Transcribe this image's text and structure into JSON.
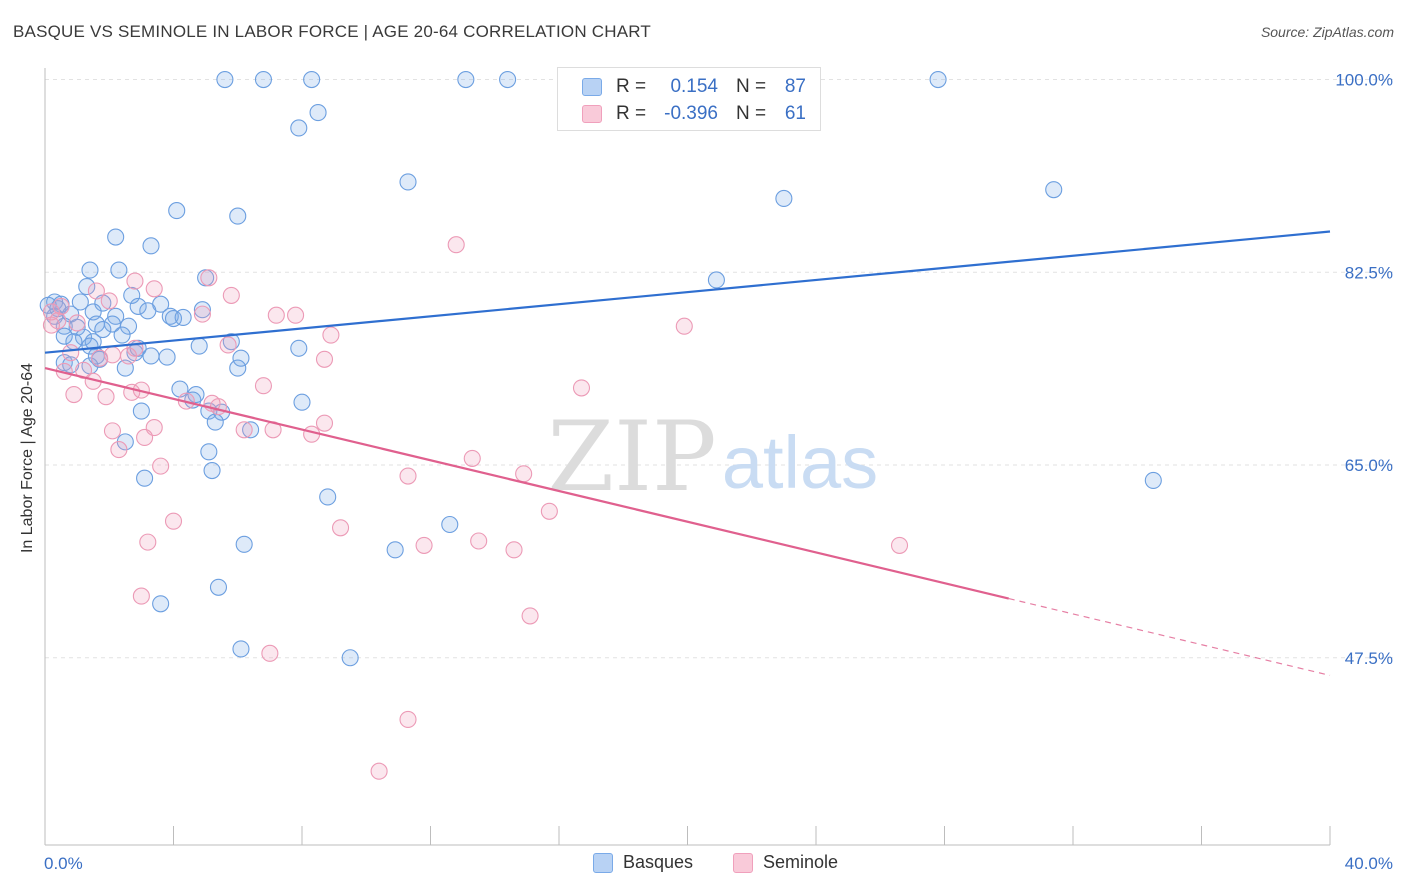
{
  "title": "BASQUE VS SEMINOLE IN LABOR FORCE | AGE 20-64 CORRELATION CHART",
  "source": "Source: ZipAtlas.com",
  "watermark": {
    "zip": "ZIP",
    "atlas": "atlas"
  },
  "legend": {
    "r_label": "R =",
    "n_label": "N =",
    "rows": [
      {
        "name": "Basques",
        "r": "0.154",
        "n": "87"
      },
      {
        "name": "Seminole",
        "r": "-0.396",
        "n": "61"
      }
    ]
  },
  "chart_data": {
    "type": "scatter",
    "ylabel": "In Labor Force | Age 20-64",
    "xlim": [
      0,
      40
    ],
    "ylim": [
      30.5,
      101.5
    ],
    "x_tick_labels": [
      "0.0%",
      "40.0%"
    ],
    "y_ticks": [
      47.5,
      65.0,
      82.5,
      100.0
    ],
    "y_tick_labels": [
      "47.5%",
      "65.0%",
      "82.5%",
      "100.0%"
    ],
    "grid": "horizontal dashed",
    "colors": {
      "Basques": "#7aaae8",
      "Seminole": "#f0a0bc",
      "Basques_line": "#2f6fd0",
      "Seminole_line": "#e0608e",
      "tick_text": "#3a6fc4"
    },
    "series": [
      {
        "name": "Basques",
        "trend": {
          "x": [
            0,
            40
          ],
          "y": [
            75.2,
            86.2
          ],
          "solid_until": 40
        },
        "points": [
          [
            5.6,
            100.0
          ],
          [
            6.8,
            100.0
          ],
          [
            8.3,
            100.0
          ],
          [
            13.1,
            100.0
          ],
          [
            14.4,
            100.0
          ],
          [
            27.8,
            100.0
          ],
          [
            8.5,
            97.0
          ],
          [
            7.9,
            95.6
          ],
          [
            11.3,
            90.7
          ],
          [
            31.4,
            90.0
          ],
          [
            23.0,
            89.2
          ],
          [
            4.1,
            88.1
          ],
          [
            6.0,
            87.6
          ],
          [
            2.2,
            85.7
          ],
          [
            3.3,
            84.9
          ],
          [
            1.4,
            82.7
          ],
          [
            2.3,
            82.7
          ],
          [
            5.0,
            82.0
          ],
          [
            20.9,
            81.8
          ],
          [
            1.3,
            81.2
          ],
          [
            2.7,
            80.4
          ],
          [
            0.3,
            79.8
          ],
          [
            0.5,
            79.6
          ],
          [
            1.1,
            79.8
          ],
          [
            1.8,
            79.7
          ],
          [
            3.6,
            79.6
          ],
          [
            2.9,
            79.4
          ],
          [
            0.4,
            79.2
          ],
          [
            3.2,
            79.0
          ],
          [
            1.5,
            78.9
          ],
          [
            4.9,
            79.1
          ],
          [
            0.3,
            78.5
          ],
          [
            0.8,
            78.7
          ],
          [
            2.2,
            78.5
          ],
          [
            3.9,
            78.5
          ],
          [
            4.0,
            78.3
          ],
          [
            0.6,
            77.6
          ],
          [
            1.6,
            77.8
          ],
          [
            2.1,
            77.8
          ],
          [
            2.6,
            77.6
          ],
          [
            1.8,
            77.3
          ],
          [
            1.0,
            77.5
          ],
          [
            0.6,
            76.7
          ],
          [
            1.2,
            76.6
          ],
          [
            1.5,
            76.2
          ],
          [
            1.4,
            75.8
          ],
          [
            5.8,
            76.2
          ],
          [
            4.8,
            75.8
          ],
          [
            7.9,
            75.6
          ],
          [
            2.8,
            75.2
          ],
          [
            2.9,
            75.6
          ],
          [
            3.3,
            74.9
          ],
          [
            1.6,
            74.9
          ],
          [
            1.7,
            74.6
          ],
          [
            0.6,
            74.3
          ],
          [
            0.8,
            74.1
          ],
          [
            1.4,
            74.0
          ],
          [
            2.5,
            73.8
          ],
          [
            6.0,
            73.8
          ],
          [
            4.2,
            71.9
          ],
          [
            4.7,
            71.4
          ],
          [
            4.6,
            70.9
          ],
          [
            8.0,
            70.7
          ],
          [
            3.0,
            69.9
          ],
          [
            5.1,
            69.9
          ],
          [
            5.5,
            69.8
          ],
          [
            5.3,
            68.9
          ],
          [
            6.4,
            68.2
          ],
          [
            2.5,
            67.1
          ],
          [
            5.1,
            66.2
          ],
          [
            3.1,
            63.8
          ],
          [
            5.2,
            64.5
          ],
          [
            8.8,
            62.1
          ],
          [
            12.6,
            59.6
          ],
          [
            34.5,
            63.6
          ],
          [
            6.2,
            57.8
          ],
          [
            10.9,
            57.3
          ],
          [
            5.4,
            53.9
          ],
          [
            3.6,
            52.4
          ],
          [
            6.1,
            48.3
          ],
          [
            9.5,
            47.5
          ],
          [
            0.1,
            79.5
          ],
          [
            0.9,
            76.2
          ],
          [
            2.4,
            76.8
          ],
          [
            3.8,
            74.8
          ],
          [
            4.3,
            78.4
          ],
          [
            6.1,
            74.7
          ]
        ]
      },
      {
        "name": "Seminole",
        "trend": {
          "x": [
            0,
            40
          ],
          "y": [
            73.8,
            45.9
          ],
          "solid_until": 30.0
        },
        "points": [
          [
            12.8,
            85.0
          ],
          [
            2.8,
            81.7
          ],
          [
            5.1,
            82.0
          ],
          [
            3.4,
            81.0
          ],
          [
            5.8,
            80.4
          ],
          [
            1.6,
            80.8
          ],
          [
            2.0,
            79.9
          ],
          [
            0.5,
            79.4
          ],
          [
            0.2,
            78.9
          ],
          [
            4.9,
            78.7
          ],
          [
            7.2,
            78.6
          ],
          [
            7.8,
            78.6
          ],
          [
            0.4,
            78.1
          ],
          [
            0.2,
            77.7
          ],
          [
            1.0,
            77.9
          ],
          [
            8.9,
            76.8
          ],
          [
            5.7,
            75.9
          ],
          [
            2.8,
            75.6
          ],
          [
            0.8,
            75.2
          ],
          [
            2.1,
            75.0
          ],
          [
            2.6,
            74.9
          ],
          [
            1.7,
            74.7
          ],
          [
            8.7,
            74.6
          ],
          [
            0.6,
            73.5
          ],
          [
            1.2,
            73.6
          ],
          [
            1.5,
            72.6
          ],
          [
            6.8,
            72.2
          ],
          [
            16.7,
            72.0
          ],
          [
            19.9,
            77.6
          ],
          [
            0.9,
            71.4
          ],
          [
            1.9,
            71.2
          ],
          [
            2.7,
            71.6
          ],
          [
            3.0,
            71.8
          ],
          [
            4.4,
            70.8
          ],
          [
            5.4,
            70.3
          ],
          [
            8.7,
            68.8
          ],
          [
            3.4,
            68.4
          ],
          [
            2.1,
            68.1
          ],
          [
            6.2,
            68.2
          ],
          [
            7.1,
            68.2
          ],
          [
            8.3,
            67.8
          ],
          [
            3.1,
            67.5
          ],
          [
            2.3,
            66.4
          ],
          [
            13.3,
            65.6
          ],
          [
            3.6,
            64.9
          ],
          [
            11.3,
            64.0
          ],
          [
            14.9,
            64.2
          ],
          [
            15.7,
            60.8
          ],
          [
            4.0,
            59.9
          ],
          [
            9.2,
            59.3
          ],
          [
            11.8,
            57.7
          ],
          [
            13.5,
            58.1
          ],
          [
            3.2,
            58.0
          ],
          [
            14.6,
            57.3
          ],
          [
            26.6,
            57.7
          ],
          [
            3.0,
            53.1
          ],
          [
            15.1,
            51.3
          ],
          [
            7.0,
            47.9
          ],
          [
            11.3,
            41.9
          ],
          [
            10.4,
            37.2
          ],
          [
            5.2,
            70.6
          ]
        ]
      }
    ]
  }
}
